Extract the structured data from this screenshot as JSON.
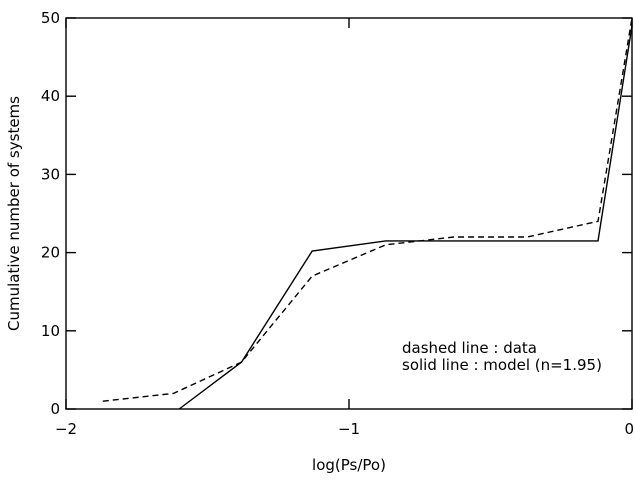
{
  "chart_data": {
    "type": "line",
    "title": "",
    "xlabel": "log(Ps/Po)",
    "ylabel": "Cumulative number of systems",
    "xlim": [
      -2,
      0
    ],
    "ylim": [
      0,
      50
    ],
    "grid": false,
    "x_ticks": [
      -2,
      -1,
      0
    ],
    "x_tick_labels": [
      "−2",
      "−1",
      "0"
    ],
    "y_ticks": [
      0,
      10,
      20,
      30,
      40,
      50
    ],
    "y_tick_labels": [
      "0",
      "10",
      "20",
      "30",
      "40",
      "50"
    ],
    "series": [
      {
        "name": "data",
        "style": "dashed",
        "color": "#000000",
        "x": [
          -1.87,
          -1.62,
          -1.38,
          -1.13,
          -0.87,
          -0.63,
          -0.37,
          -0.12,
          0.0
        ],
        "y": [
          1,
          2,
          6,
          17,
          21,
          22,
          22,
          24,
          50
        ]
      },
      {
        "name": "model (n=1.95)",
        "style": "solid",
        "color": "#000000",
        "x": [
          -1.6,
          -1.38,
          -1.13,
          -0.87,
          -0.12,
          0.0
        ],
        "y": [
          0,
          6,
          20.2,
          21.5,
          21.5,
          49
        ]
      }
    ],
    "annotations": [
      "dashed line : data",
      "solid line : model (n=1.95)"
    ]
  }
}
